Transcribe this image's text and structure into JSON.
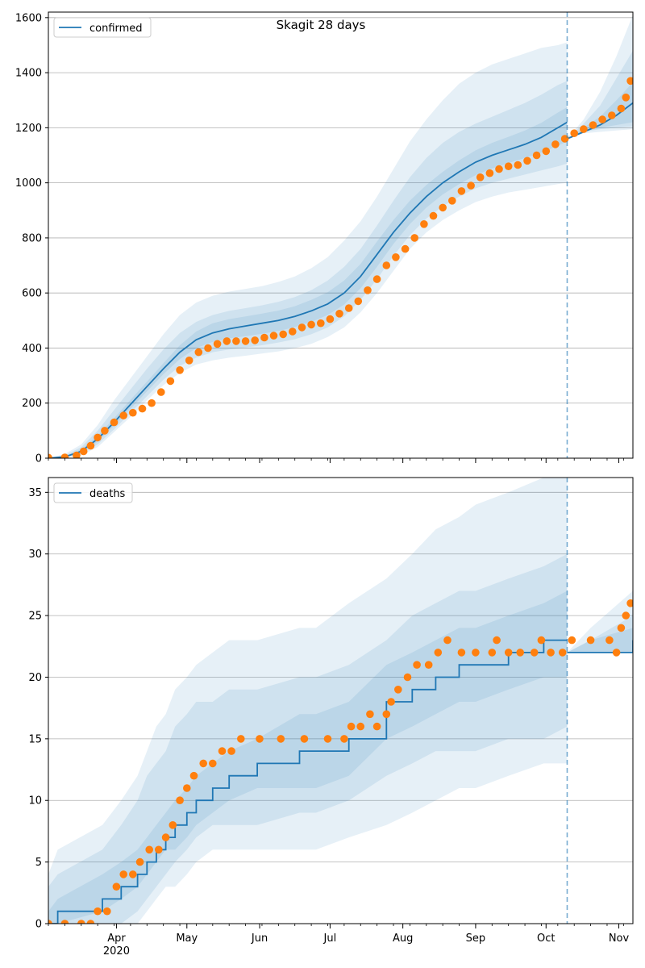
{
  "figure_title": "Skagit 28 days",
  "colors": {
    "model": "#1f77b4",
    "observed": "#ff7f0e",
    "band": "#1f77b4",
    "grid": "#b0b0b0"
  },
  "chart_data": [
    {
      "type": "line",
      "name": "confirmed-panel",
      "title": "Skagit 28 days",
      "legend": [
        "confirmed"
      ],
      "legend_position": "top-left",
      "grid": "y",
      "x_ticks": [
        "Apr",
        "May",
        "Jun",
        "Jul",
        "Aug",
        "Sep",
        "Oct",
        "Nov"
      ],
      "x_year_label": "2020",
      "x_range": [
        "2020-03-03",
        "2020-11-07"
      ],
      "ylim": [
        0,
        1620
      ],
      "y_ticks": [
        0,
        200,
        400,
        600,
        800,
        1000,
        1200,
        1400,
        1600
      ],
      "forecast_start": "2020-10-10",
      "model_series": {
        "name": "confirmed",
        "dates": [
          "2020-03-03",
          "2020-03-10",
          "2020-03-17",
          "2020-03-24",
          "2020-03-31",
          "2020-04-07",
          "2020-04-14",
          "2020-04-21",
          "2020-04-28",
          "2020-05-05",
          "2020-05-12",
          "2020-05-19",
          "2020-05-26",
          "2020-06-02",
          "2020-06-09",
          "2020-06-16",
          "2020-06-23",
          "2020-06-30",
          "2020-07-07",
          "2020-07-14",
          "2020-07-21",
          "2020-07-28",
          "2020-08-04",
          "2020-08-11",
          "2020-08-18",
          "2020-08-25",
          "2020-09-01",
          "2020-09-08",
          "2020-09-15",
          "2020-09-22",
          "2020-09-29",
          "2020-10-06",
          "2020-10-10"
        ],
        "values": [
          0,
          5,
          25,
          70,
          130,
          195,
          260,
          325,
          385,
          430,
          455,
          470,
          480,
          490,
          500,
          515,
          535,
          560,
          600,
          660,
          740,
          820,
          890,
          950,
          1000,
          1040,
          1075,
          1100,
          1120,
          1140,
          1165,
          1200,
          1220
        ],
        "forecast_dates": [
          "2020-10-10",
          "2020-10-17",
          "2020-10-24",
          "2020-10-31",
          "2020-11-07"
        ],
        "forecast_values": [
          1160,
          1185,
          1210,
          1245,
          1290
        ]
      },
      "bands": [
        {
          "level": "outer",
          "lower": [
            0,
            2,
            10,
            40,
            95,
            150,
            210,
            265,
            310,
            340,
            355,
            365,
            372,
            380,
            388,
            400,
            415,
            440,
            475,
            530,
            600,
            680,
            760,
            820,
            865,
            900,
            930,
            950,
            965,
            975,
            985,
            995,
            1000
          ],
          "upper": [
            0,
            15,
            50,
            120,
            210,
            290,
            370,
            450,
            520,
            565,
            590,
            605,
            615,
            625,
            640,
            660,
            690,
            730,
            790,
            860,
            950,
            1050,
            1150,
            1230,
            1300,
            1360,
            1400,
            1430,
            1450,
            1470,
            1490,
            1500,
            1510
          ],
          "forecast_lower": [
            1170,
            1180,
            1185,
            1190,
            1195
          ],
          "forecast_upper": [
            1160,
            1230,
            1330,
            1460,
            1610
          ]
        },
        {
          "level": "middle",
          "lower": [
            0,
            3,
            15,
            50,
            105,
            165,
            225,
            285,
            335,
            365,
            385,
            395,
            402,
            410,
            420,
            432,
            450,
            475,
            515,
            575,
            650,
            735,
            810,
            870,
            915,
            950,
            980,
            1000,
            1015,
            1030,
            1045,
            1060,
            1070
          ],
          "upper": [
            0,
            10,
            40,
            100,
            175,
            250,
            325,
            395,
            455,
            495,
            520,
            535,
            545,
            555,
            568,
            585,
            610,
            645,
            695,
            760,
            845,
            935,
            1020,
            1090,
            1145,
            1185,
            1215,
            1240,
            1265,
            1290,
            1320,
            1355,
            1370
          ],
          "forecast_lower": [
            1170,
            1185,
            1195,
            1200,
            1205
          ],
          "forecast_upper": [
            1160,
            1215,
            1280,
            1380,
            1480
          ]
        },
        {
          "level": "inner",
          "lower": [
            0,
            4,
            20,
            60,
            118,
            180,
            243,
            305,
            360,
            400,
            422,
            435,
            443,
            452,
            462,
            476,
            495,
            520,
            558,
            617,
            695,
            778,
            850,
            910,
            958,
            995,
            1028,
            1052,
            1072,
            1090,
            1110,
            1135,
            1150
          ],
          "upper": [
            0,
            7,
            32,
            82,
            145,
            212,
            278,
            345,
            410,
            460,
            490,
            505,
            515,
            525,
            536,
            552,
            575,
            603,
            645,
            705,
            787,
            865,
            935,
            992,
            1040,
            1082,
            1118,
            1145,
            1167,
            1190,
            1218,
            1255,
            1275
          ],
          "forecast_lower": [
            1165,
            1185,
            1200,
            1210,
            1220
          ],
          "forecast_upper": [
            1160,
            1200,
            1240,
            1300,
            1365
          ]
        }
      ],
      "observed": {
        "dates": [
          "2020-03-03",
          "2020-03-10",
          "2020-03-15",
          "2020-03-18",
          "2020-03-21",
          "2020-03-24",
          "2020-03-27",
          "2020-03-31",
          "2020-04-04",
          "2020-04-08",
          "2020-04-12",
          "2020-04-16",
          "2020-04-20",
          "2020-04-24",
          "2020-04-28",
          "2020-05-02",
          "2020-05-06",
          "2020-05-10",
          "2020-05-14",
          "2020-05-18",
          "2020-05-22",
          "2020-05-26",
          "2020-05-30",
          "2020-06-03",
          "2020-06-07",
          "2020-06-11",
          "2020-06-15",
          "2020-06-19",
          "2020-06-23",
          "2020-06-27",
          "2020-07-01",
          "2020-07-05",
          "2020-07-09",
          "2020-07-13",
          "2020-07-17",
          "2020-07-21",
          "2020-07-25",
          "2020-07-29",
          "2020-08-02",
          "2020-08-06",
          "2020-08-10",
          "2020-08-14",
          "2020-08-18",
          "2020-08-22",
          "2020-08-26",
          "2020-08-30",
          "2020-09-03",
          "2020-09-07",
          "2020-09-11",
          "2020-09-15",
          "2020-09-19",
          "2020-09-23",
          "2020-09-27",
          "2020-10-01",
          "2020-10-05",
          "2020-10-09",
          "2020-10-13",
          "2020-10-17",
          "2020-10-21",
          "2020-10-25",
          "2020-10-29",
          "2020-11-02",
          "2020-11-04",
          "2020-11-06"
        ],
        "values": [
          2,
          3,
          10,
          25,
          45,
          75,
          100,
          130,
          155,
          165,
          180,
          200,
          240,
          280,
          320,
          355,
          385,
          400,
          415,
          425,
          425,
          425,
          428,
          438,
          445,
          450,
          460,
          475,
          485,
          490,
          505,
          525,
          545,
          570,
          610,
          650,
          700,
          730,
          760,
          800,
          850,
          880,
          910,
          935,
          970,
          990,
          1020,
          1035,
          1050,
          1060,
          1065,
          1080,
          1100,
          1115,
          1140,
          1160,
          1180,
          1195,
          1210,
          1230,
          1245,
          1270,
          1310,
          1370
        ]
      }
    },
    {
      "type": "line",
      "name": "deaths-panel",
      "legend": [
        "deaths"
      ],
      "legend_position": "top-left",
      "grid": "y",
      "x_ticks": [
        "Apr",
        "May",
        "Jun",
        "Jul",
        "Aug",
        "Sep",
        "Oct",
        "Nov"
      ],
      "x_year_label": "2020",
      "x_range": [
        "2020-03-03",
        "2020-11-07"
      ],
      "ylim": [
        0,
        36.2
      ],
      "y_ticks": [
        0,
        5,
        10,
        15,
        20,
        25,
        30,
        35
      ],
      "forecast_start": "2020-10-10",
      "model_series": {
        "name": "deaths",
        "dates": [
          "2020-03-03",
          "2020-03-07",
          "2020-03-26",
          "2020-04-03",
          "2020-04-10",
          "2020-04-14",
          "2020-04-18",
          "2020-04-22",
          "2020-04-26",
          "2020-05-01",
          "2020-05-05",
          "2020-05-12",
          "2020-05-19",
          "2020-05-31",
          "2020-06-18",
          "2020-06-25",
          "2020-07-09",
          "2020-07-25",
          "2020-08-05",
          "2020-08-15",
          "2020-08-25",
          "2020-09-01",
          "2020-09-15",
          "2020-09-30",
          "2020-10-10"
        ],
        "values": [
          0,
          1,
          2,
          3,
          4,
          5,
          6,
          7,
          8,
          9,
          10,
          11,
          12,
          13,
          14,
          14,
          15,
          18,
          19,
          20,
          21,
          21,
          22,
          23,
          23
        ],
        "forecast_dates": [
          "2020-10-10",
          "2020-10-20",
          "2020-11-07"
        ],
        "forecast_values": [
          22,
          22,
          23
        ]
      },
      "bands": [
        {
          "level": "outer",
          "lower": [
            0,
            0,
            0,
            0,
            0,
            1,
            2,
            3,
            3,
            4,
            5,
            6,
            6,
            6,
            6,
            6,
            7,
            8,
            9,
            10,
            11,
            11,
            12,
            13,
            13
          ],
          "upper": [
            4,
            6,
            8,
            10,
            12,
            14,
            16,
            17,
            19,
            20,
            21,
            22,
            23,
            23,
            24,
            24,
            26,
            28,
            30,
            32,
            33,
            34,
            35,
            36.2,
            36.2
          ],
          "forecast_lower": [
            22,
            22,
            22
          ],
          "forecast_upper": [
            22,
            24,
            27
          ]
        },
        {
          "level": "middle",
          "lower": [
            0,
            0,
            0,
            0,
            1,
            2,
            3,
            4,
            5,
            6,
            7,
            8,
            8,
            8,
            9,
            9,
            10,
            12,
            13,
            14,
            14,
            14,
            15,
            15,
            16
          ],
          "upper": [
            3,
            4,
            6,
            8,
            10,
            12,
            13,
            14,
            16,
            17,
            18,
            18,
            19,
            19,
            20,
            20,
            21,
            23,
            25,
            26,
            27,
            27,
            28,
            29,
            30
          ],
          "forecast_lower": [
            22,
            22,
            22
          ],
          "forecast_upper": [
            22,
            23,
            25
          ]
        },
        {
          "level": "inner",
          "lower": [
            0,
            0,
            1,
            2,
            3,
            4,
            5,
            6,
            6,
            7,
            8,
            9,
            10,
            11,
            11,
            11,
            12,
            15,
            16,
            17,
            18,
            18,
            19,
            20,
            20
          ],
          "upper": [
            1,
            2,
            4,
            5,
            6,
            7,
            8,
            9,
            10,
            11,
            12,
            13,
            14,
            15,
            17,
            17,
            18,
            21,
            22,
            23,
            24,
            24,
            25,
            26,
            27
          ],
          "forecast_lower": [
            22,
            22,
            22
          ],
          "forecast_upper": [
            22,
            23,
            24
          ]
        }
      ],
      "observed": {
        "dates": [
          "2020-03-03",
          "2020-03-10",
          "2020-03-17",
          "2020-03-21",
          "2020-03-24",
          "2020-03-28",
          "2020-04-01",
          "2020-04-04",
          "2020-04-08",
          "2020-04-11",
          "2020-04-15",
          "2020-04-19",
          "2020-04-22",
          "2020-04-25",
          "2020-04-28",
          "2020-05-01",
          "2020-05-04",
          "2020-05-08",
          "2020-05-12",
          "2020-05-16",
          "2020-05-20",
          "2020-05-24",
          "2020-06-01",
          "2020-06-10",
          "2020-06-20",
          "2020-06-30",
          "2020-07-07",
          "2020-07-10",
          "2020-07-14",
          "2020-07-18",
          "2020-07-21",
          "2020-07-25",
          "2020-07-27",
          "2020-07-30",
          "2020-08-03",
          "2020-08-07",
          "2020-08-12",
          "2020-08-16",
          "2020-08-20",
          "2020-08-26",
          "2020-09-01",
          "2020-09-08",
          "2020-09-10",
          "2020-09-15",
          "2020-09-20",
          "2020-09-26",
          "2020-09-29",
          "2020-10-03",
          "2020-10-08",
          "2020-10-12",
          "2020-10-20",
          "2020-10-28",
          "2020-10-31",
          "2020-11-02",
          "2020-11-04",
          "2020-11-06"
        ],
        "values": [
          0,
          0,
          0,
          0,
          1,
          1,
          3,
          4,
          4,
          5,
          6,
          6,
          7,
          8,
          10,
          11,
          12,
          13,
          13,
          14,
          14,
          15,
          15,
          15,
          15,
          15,
          15,
          16,
          16,
          17,
          16,
          17,
          18,
          19,
          20,
          21,
          21,
          22,
          23,
          22,
          22,
          22,
          23,
          22,
          22,
          22,
          23,
          22,
          22,
          23,
          23,
          23,
          22,
          24,
          25,
          26
        ]
      }
    }
  ]
}
